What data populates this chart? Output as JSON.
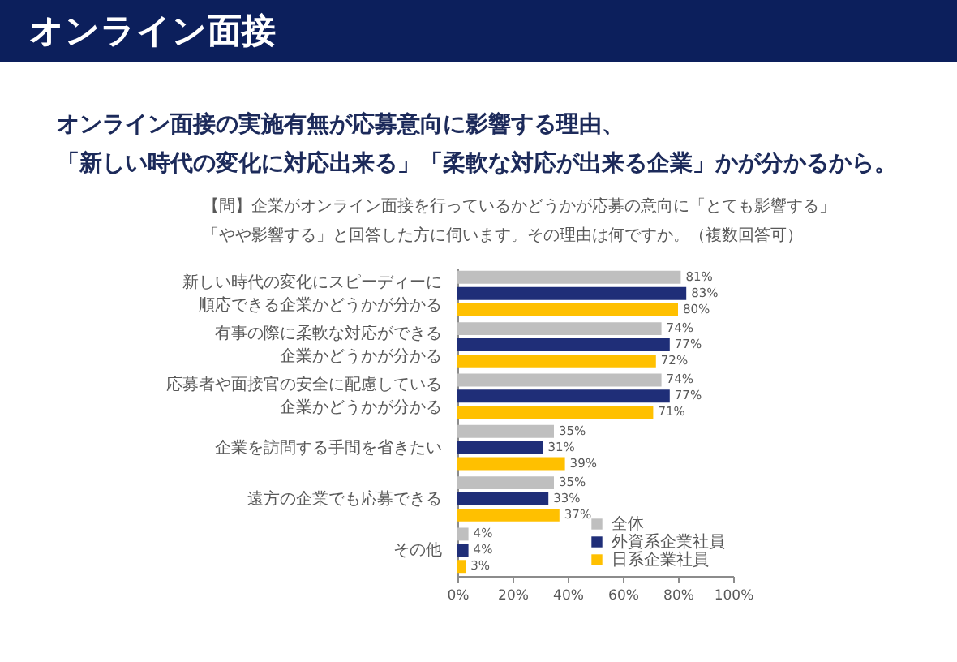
{
  "chart_data": {
    "type": "bar",
    "orientation": "horizontal",
    "title": "オンライン面接",
    "subtitle": "オンライン面接の実施有無が応募意向に影響する理由、「新しい時代の変化に対応出来る」「柔軟な対応が出来る企業」かが分かるから。",
    "annotations": [
      "【問】企業がオンライン面接を行っているかどうかが応募の意向に「とても影響する」「やや影響する」と回答した方に伺います。その理由は何ですか。（複数回答可）"
    ],
    "categories": [
      "新しい時代の変化にスピーディーに順応できる企業かどうかが分かる",
      "有事の際に柔軟な対応ができる企業かどうかが分かる",
      "応募者や面接官の安全に配慮している企業かどうかが分かる",
      "企業を訪問する手間を省きたい",
      "遠方の企業でも応募できる",
      "その他"
    ],
    "series": [
      {
        "name": "全体",
        "color": "#bfbfbf",
        "values": [
          81,
          74,
          74,
          35,
          35,
          4
        ],
        "value_labels": [
          "81%",
          "74%",
          "74%",
          "35%",
          "35%",
          "4%"
        ]
      },
      {
        "name": "外資系企業社員",
        "color": "#1f2e78",
        "values": [
          83,
          77,
          77,
          31,
          33,
          4
        ],
        "value_labels": [
          "83%",
          "77%",
          "77%",
          "31%",
          "33%",
          "4%"
        ]
      },
      {
        "name": "日系企業社員",
        "color": "#ffc000",
        "values": [
          80,
          72,
          71,
          39,
          37,
          3
        ],
        "value_labels": [
          "80%",
          "72%",
          "71%",
          "39%",
          "37%",
          "3%"
        ]
      }
    ],
    "xlim": [
      0,
      100
    ],
    "xticks": [
      {
        "value": 0,
        "label": "0%"
      },
      {
        "value": 20,
        "label": "20%"
      },
      {
        "value": 40,
        "label": "40%"
      },
      {
        "value": 60,
        "label": "60%"
      },
      {
        "value": 80,
        "label": "80%"
      },
      {
        "value": 100,
        "label": "100%"
      }
    ],
    "grid": false,
    "legend": "bottom right"
  }
}
